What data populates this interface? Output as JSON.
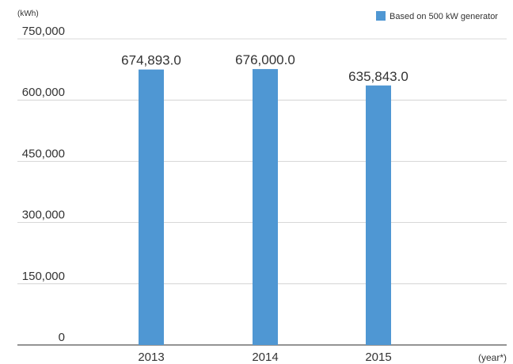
{
  "chart_data": {
    "type": "bar",
    "ylabel": "(kWh)",
    "xlabel": "(year*)",
    "categories": [
      "2013",
      "2014",
      "2015"
    ],
    "series": [
      {
        "name": "Based on 500 kW generator",
        "values": [
          674893.0,
          676000.0,
          635843.0
        ],
        "labels": [
          "674,893.0",
          "676,000.0",
          "635,843.0"
        ]
      }
    ],
    "ylim": [
      0,
      750000
    ],
    "yticks": [
      0,
      150000,
      300000,
      450000,
      600000,
      750000
    ],
    "ytick_labels": [
      "0",
      "150,000",
      "300,000",
      "450,000",
      "600,000",
      "750,000"
    ],
    "grid": true,
    "legend_position": "top-right",
    "colors": {
      "bar": "#4f97d3",
      "grid": "#cccccc",
      "axis": "#555555"
    }
  }
}
